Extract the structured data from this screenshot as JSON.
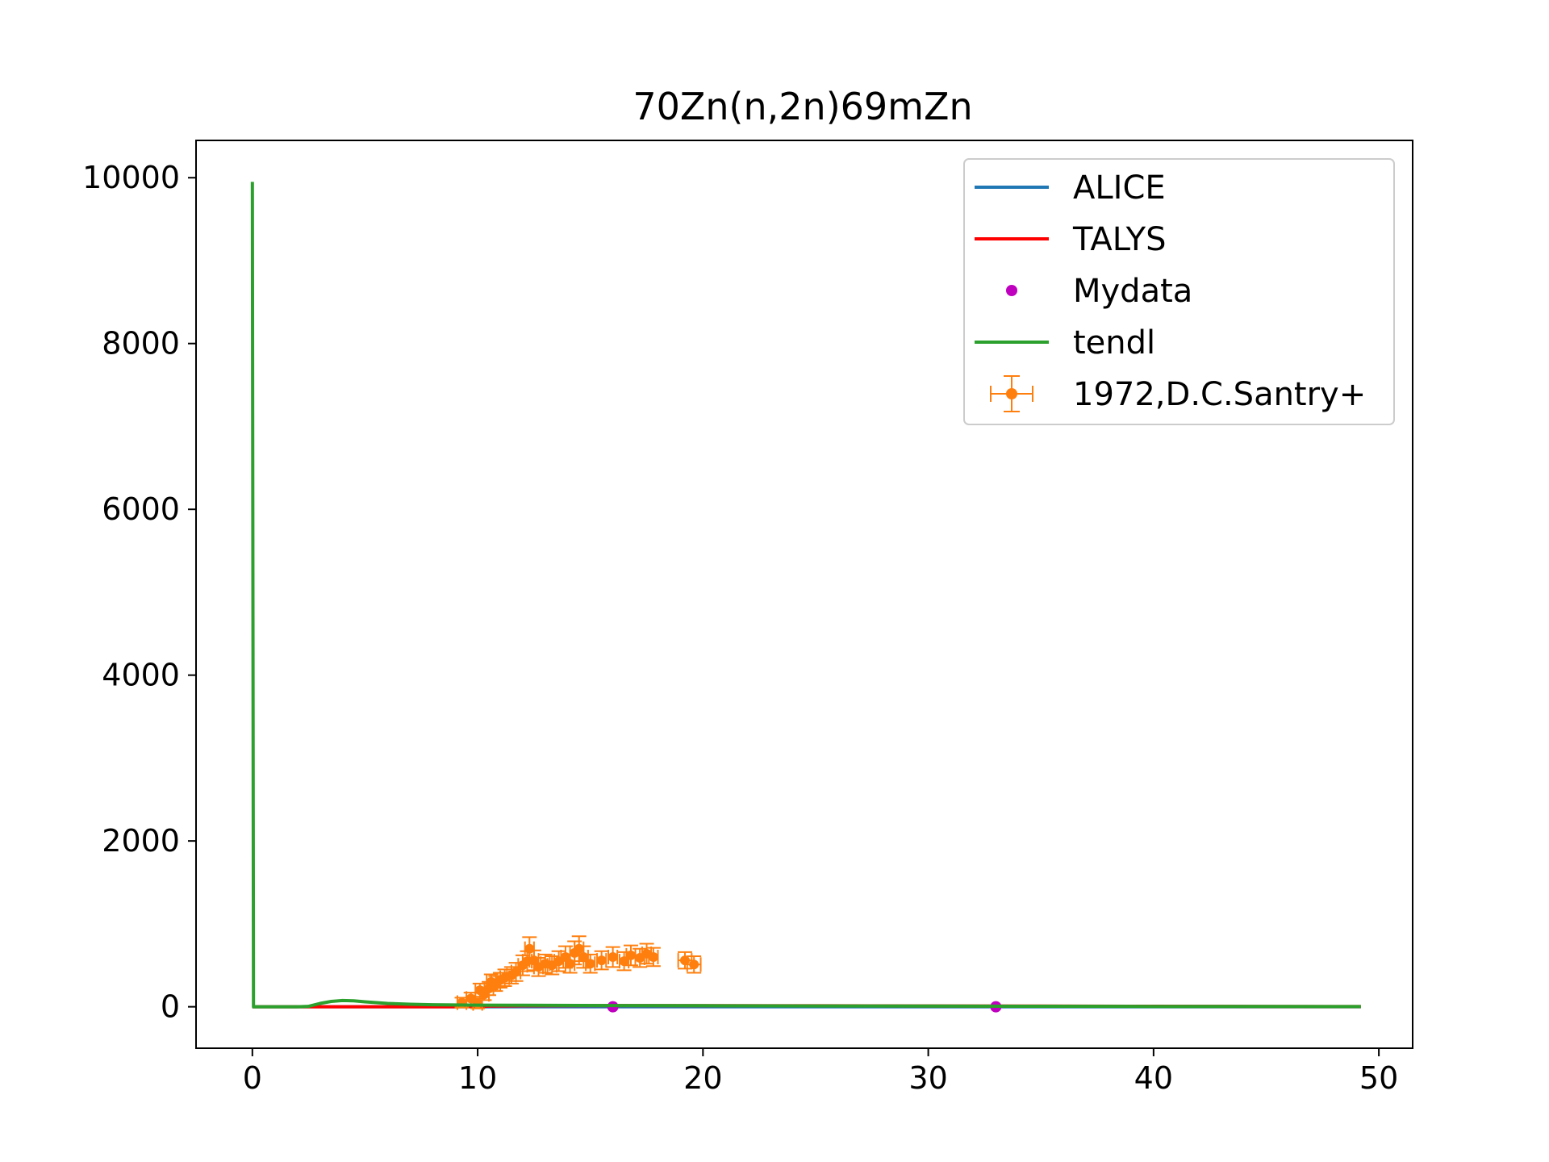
{
  "chart_data": {
    "type": "line",
    "title": "70Zn(n,2n)69mZn",
    "xlabel": "",
    "ylabel": "",
    "xlim": [
      -2.5,
      51.5
    ],
    "ylim": [
      -500,
      10450
    ],
    "x_ticks": [
      0,
      10,
      20,
      30,
      40,
      50
    ],
    "y_ticks": [
      0,
      2000,
      4000,
      6000,
      8000,
      10000
    ],
    "legend_position": "top-right",
    "grid": false,
    "series": [
      {
        "name": "ALICE",
        "kind": "line",
        "color": "#1f77b4",
        "x": [
          0,
          49.2
        ],
        "y": [
          0,
          0
        ]
      },
      {
        "name": "TALYS",
        "kind": "line",
        "color": "#ff0000",
        "x": [
          0,
          1,
          2,
          3,
          4,
          5,
          6,
          7,
          8,
          9,
          9.5,
          10,
          10.5,
          11,
          12,
          14,
          16,
          20,
          25,
          30,
          35,
          40,
          45,
          49.2
        ],
        "y": [
          0,
          0,
          0,
          0,
          0,
          0,
          0,
          0,
          0,
          0,
          2,
          5,
          8,
          10,
          12,
          14,
          15,
          14,
          12,
          10,
          8,
          6,
          4,
          2
        ]
      },
      {
        "name": "Mydata",
        "kind": "scatter",
        "color": "#bf00bf",
        "x": [
          16,
          33
        ],
        "y": [
          0,
          0
        ]
      },
      {
        "name": "tendl",
        "kind": "line",
        "color": "#2ca02c",
        "x": [
          0,
          0.05,
          1,
          2,
          2.5,
          3,
          3.5,
          4,
          4.5,
          5,
          6,
          7,
          8,
          9,
          10,
          12,
          16,
          20,
          25,
          30,
          35,
          40,
          45,
          49.2
        ],
        "y": [
          9950,
          0,
          0,
          0,
          5,
          40,
          65,
          75,
          72,
          60,
          40,
          30,
          25,
          22,
          20,
          18,
          15,
          13,
          10,
          8,
          6,
          4,
          3,
          2
        ]
      },
      {
        "name": "1972,D.C.Santry+",
        "kind": "errorbar",
        "color": "#ff7f0e",
        "x": [
          9.3,
          9.7,
          10.0,
          10.1,
          10.3,
          10.5,
          10.6,
          10.8,
          11.0,
          11.2,
          11.5,
          11.7,
          12.0,
          12.2,
          12.3,
          12.5,
          12.7,
          13.0,
          13.3,
          13.6,
          13.9,
          14.1,
          14.3,
          14.5,
          14.7,
          15.0,
          15.5,
          16.0,
          16.5,
          16.8,
          17.2,
          17.5,
          17.8,
          19.2,
          19.6
        ],
        "y": [
          50,
          100,
          40,
          200,
          150,
          220,
          300,
          280,
          320,
          350,
          380,
          420,
          500,
          550,
          700,
          560,
          480,
          520,
          500,
          550,
          600,
          520,
          650,
          700,
          600,
          520,
          560,
          600,
          550,
          620,
          590,
          640,
          600,
          560,
          510
        ],
        "yerr": [
          60,
          70,
          60,
          80,
          70,
          80,
          90,
          90,
          90,
          100,
          100,
          110,
          120,
          120,
          140,
          120,
          110,
          110,
          110,
          120,
          130,
          110,
          140,
          150,
          130,
          110,
          110,
          120,
          110,
          120,
          110,
          120,
          110,
          100,
          100
        ],
        "xerr": [
          0.2,
          0.2,
          0.2,
          0.2,
          0.2,
          0.2,
          0.2,
          0.2,
          0.2,
          0.2,
          0.2,
          0.2,
          0.2,
          0.2,
          0.2,
          0.2,
          0.2,
          0.2,
          0.2,
          0.2,
          0.2,
          0.2,
          0.2,
          0.2,
          0.2,
          0.2,
          0.2,
          0.2,
          0.2,
          0.2,
          0.2,
          0.2,
          0.2,
          0.3,
          0.3
        ]
      }
    ]
  }
}
